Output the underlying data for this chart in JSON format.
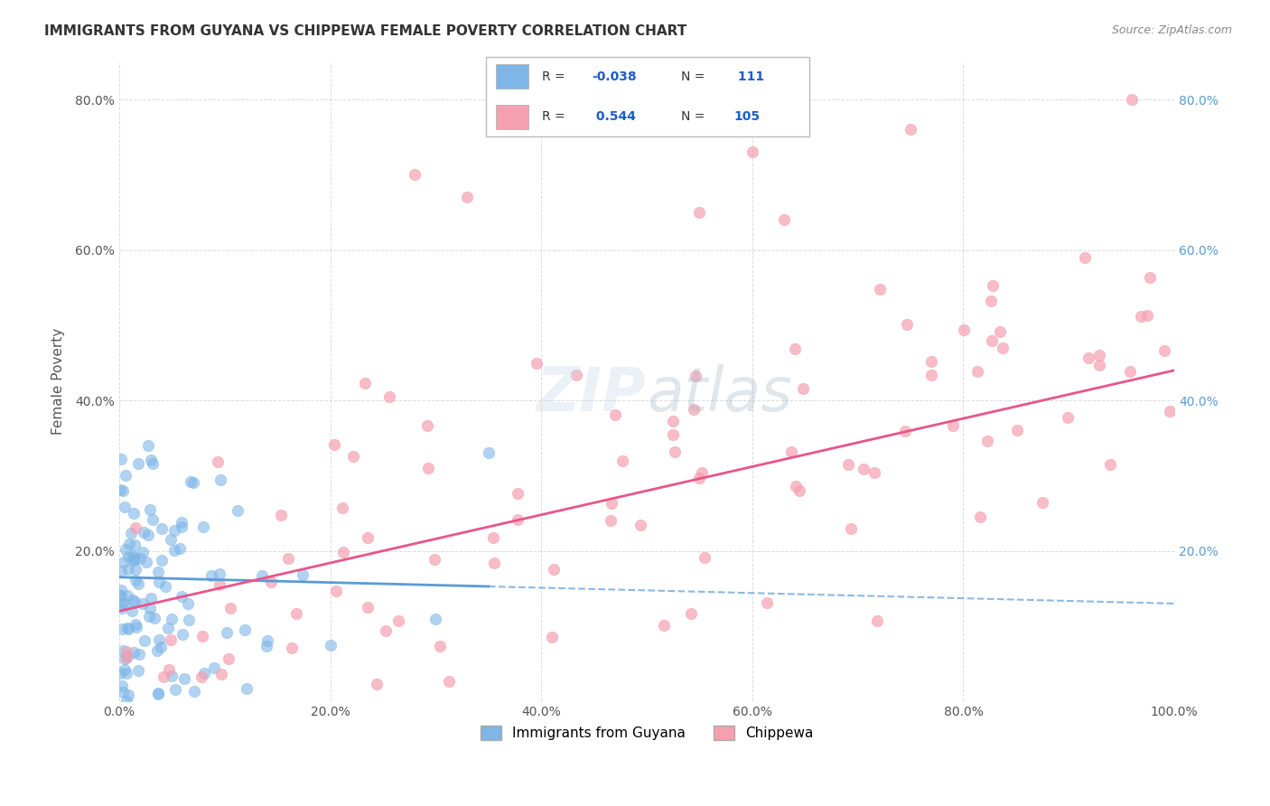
{
  "title": "IMMIGRANTS FROM GUYANA VS CHIPPEWA FEMALE POVERTY CORRELATION CHART",
  "source": "Source: ZipAtlas.com",
  "xlabel": "",
  "ylabel": "Female Poverty",
  "xlim": [
    0,
    1.0
  ],
  "ylim": [
    0,
    0.85
  ],
  "xticks": [
    0.0,
    0.2,
    0.4,
    0.6,
    0.8,
    1.0
  ],
  "xtick_labels": [
    "0.0%",
    "20.0%",
    "40.0%",
    "60.0%",
    "80.0%",
    "100.0%"
  ],
  "yticks": [
    0.0,
    0.2,
    0.4,
    0.6,
    0.8
  ],
  "ytick_labels": [
    "",
    "20.0%",
    "40.0%",
    "60.0%",
    "80.0%"
  ],
  "right_ytick_labels": [
    "20.0%",
    "40.0%",
    "60.0%",
    "80.0%"
  ],
  "legend_label1": "Immigrants from Guyana",
  "legend_label2": "Chippewa",
  "blue_color": "#7EB6E8",
  "pink_color": "#F5A0B0",
  "trend_blue": "#5B9BD5",
  "trend_pink": "#E8558A",
  "blue_r": -0.038,
  "blue_n": 111,
  "pink_r": 0.544,
  "pink_n": 105,
  "blue_seed": 42,
  "pink_seed": 99
}
